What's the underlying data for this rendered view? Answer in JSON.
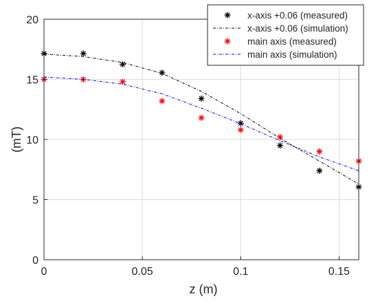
{
  "chart_data": {
    "type": "line",
    "xlabel": "z (m)",
    "ylabel": "(mT)",
    "xlim": [
      0,
      0.16
    ],
    "ylim": [
      0,
      20
    ],
    "x_ticks": [
      0,
      0.05,
      0.1,
      0.15
    ],
    "x_tick_labels": [
      "0",
      "0.05",
      "0.1",
      "0.15"
    ],
    "y_ticks": [
      0,
      5,
      10,
      15,
      20
    ],
    "y_tick_labels": [
      "0",
      "5",
      "10",
      "15",
      "20"
    ],
    "grid": true,
    "legend_position": "top-right",
    "series": [
      {
        "name": "x-axis +0.06 (measured)",
        "kind": "scatter",
        "marker": "asterisk",
        "color": "#000000",
        "x": [
          0,
          0.02,
          0.04,
          0.06,
          0.08,
          0.1,
          0.12,
          0.14,
          0.16
        ],
        "y": [
          17.15,
          17.15,
          16.25,
          15.55,
          13.4,
          11.35,
          9.5,
          7.4,
          6.05
        ]
      },
      {
        "name": "x-axis +0.06 (simulation)",
        "kind": "line",
        "line_style": "dash-dot",
        "color": "#000000",
        "x": [
          0,
          0.02,
          0.04,
          0.06,
          0.08,
          0.1,
          0.12,
          0.14,
          0.16
        ],
        "y": [
          17.1,
          16.9,
          16.4,
          15.5,
          14.0,
          12.15,
          10.1,
          8.2,
          6.3
        ]
      },
      {
        "name": "main axis (measured)",
        "kind": "scatter",
        "marker": "asterisk",
        "color": "#ff0000",
        "x": [
          0,
          0.02,
          0.04,
          0.06,
          0.08,
          0.1,
          0.12,
          0.14,
          0.16
        ],
        "y": [
          15.0,
          15.0,
          14.8,
          13.2,
          11.8,
          10.8,
          10.2,
          9.0,
          8.2
        ]
      },
      {
        "name": "main axis (simulation)",
        "kind": "line",
        "line_style": "dash-dot",
        "color": "#0000ff",
        "x": [
          0,
          0.02,
          0.04,
          0.06,
          0.08,
          0.1,
          0.12,
          0.14,
          0.16
        ],
        "y": [
          15.2,
          15.0,
          14.6,
          13.8,
          12.6,
          11.3,
          9.9,
          8.55,
          7.4
        ]
      }
    ]
  }
}
